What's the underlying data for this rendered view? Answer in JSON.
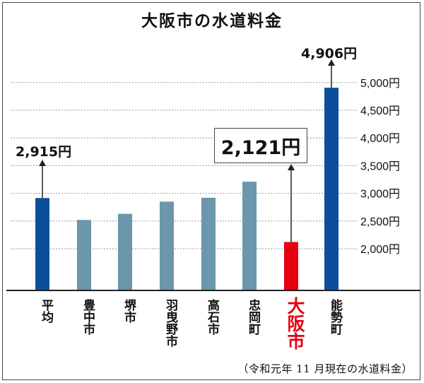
{
  "title": "大阪市の水道料金",
  "footnote": "（令和元年 11 月現在の水道料金）",
  "chart_data": {
    "type": "bar",
    "title": "大阪市の水道料金",
    "unit": "円",
    "categories": [
      "平均",
      "豊中市",
      "堺市",
      "羽曳野市",
      "高石市",
      "忠岡町",
      "大阪市",
      "能勢町"
    ],
    "values": [
      2915,
      2520,
      2630,
      2850,
      2920,
      3210,
      2121,
      4906
    ],
    "bar_colors": [
      "#0b4f9c",
      "#6b96ab",
      "#6b96ab",
      "#6b96ab",
      "#6b96ab",
      "#6b96ab",
      "#e60012",
      "#0b4f9c"
    ],
    "label_colors": [
      "#111111",
      "#111111",
      "#111111",
      "#111111",
      "#111111",
      "#111111",
      "#e60012",
      "#111111"
    ],
    "ylim": [
      1300,
      5000
    ],
    "yticks": [
      2000,
      2500,
      3000,
      3500,
      4000,
      4500,
      5000
    ],
    "ytick_labels": [
      "2,000円",
      "2,500円",
      "3,000円",
      "3,500円",
      "4,000円",
      "4,500円",
      "5,000円"
    ],
    "grid": true,
    "annotations": [
      {
        "category": "平均",
        "text": "2,915円"
      },
      {
        "category": "大阪市",
        "text": "2,121円",
        "boxed": true
      },
      {
        "category": "能勢町",
        "text": "4,906円"
      }
    ]
  }
}
